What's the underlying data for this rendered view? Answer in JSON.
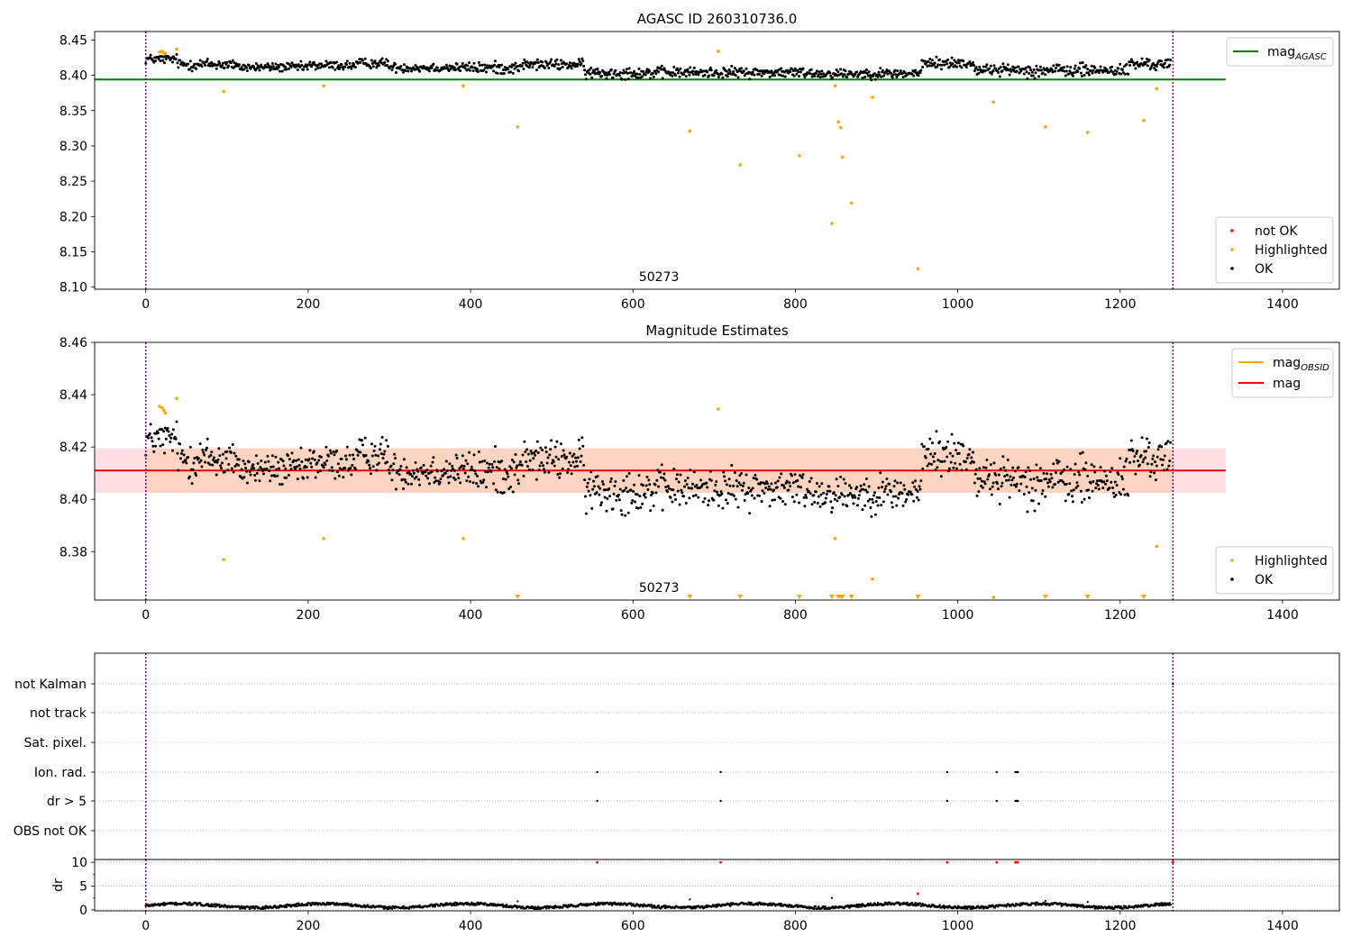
{
  "chart_data": [
    {
      "type": "scatter",
      "title": "AGASC ID 260310736.0",
      "xlabel": "",
      "ylabel": "",
      "xlim": [
        -63,
        1470
      ],
      "ylim": [
        8.097,
        8.462
      ],
      "xticks": [
        0,
        200,
        400,
        600,
        800,
        1000,
        1200,
        1400
      ],
      "yticks": [
        8.1,
        8.15,
        8.2,
        8.25,
        8.3,
        8.35,
        8.4,
        8.45
      ],
      "ytick_labels": [
        "8.10",
        "8.15",
        "8.20",
        "8.25",
        "8.30",
        "8.35",
        "8.40",
        "8.45"
      ],
      "annotation": "50273",
      "annotation_x": 632,
      "vlines": [
        0,
        1265
      ],
      "hline": {
        "name": "mag",
        "name_sub": "AGASC",
        "y": 8.394,
        "x_range": [
          -63,
          1330
        ],
        "color": "#008000"
      },
      "line_legend": {
        "placement": "top-right",
        "entries": [
          {
            "label": "mag",
            "sub": "AGASC",
            "color": "#008000"
          }
        ]
      },
      "point_legend": {
        "placement": "bottom-right",
        "entries": [
          {
            "label": "not OK",
            "color": "#ff0000"
          },
          {
            "label": "Highlighted",
            "color": "#ffa500"
          },
          {
            "label": "OK",
            "color": "#000000"
          }
        ]
      },
      "ok_series": {
        "name": "OK",
        "color": "#000000",
        "x_start": 0,
        "x_end": 1262,
        "count": 1262,
        "segments": [
          {
            "x": [
              0,
              40
            ],
            "lo": 8.413,
            "hi": 8.433
          },
          {
            "x": [
              40,
              110
            ],
            "lo": 8.403,
            "hi": 8.428
          },
          {
            "x": [
              110,
              200
            ],
            "lo": 8.402,
            "hi": 8.421
          },
          {
            "x": [
              200,
              260
            ],
            "lo": 8.404,
            "hi": 8.424
          },
          {
            "x": [
              260,
              300
            ],
            "lo": 8.407,
            "hi": 8.427
          },
          {
            "x": [
              300,
              400
            ],
            "lo": 8.401,
            "hi": 8.421
          },
          {
            "x": [
              400,
              460
            ],
            "lo": 8.398,
            "hi": 8.423
          },
          {
            "x": [
              460,
              540
            ],
            "lo": 8.404,
            "hi": 8.426
          },
          {
            "x": [
              540,
              640
            ],
            "lo": 8.391,
            "hi": 8.416
          },
          {
            "x": [
              640,
              820
            ],
            "lo": 8.393,
            "hi": 8.415
          },
          {
            "x": [
              820,
              955
            ],
            "lo": 8.392,
            "hi": 8.413
          },
          {
            "x": [
              955,
              1020
            ],
            "lo": 8.405,
            "hi": 8.429
          },
          {
            "x": [
              1020,
              1080
            ],
            "lo": 8.397,
            "hi": 8.419
          },
          {
            "x": [
              1080,
              1210
            ],
            "lo": 8.393,
            "hi": 8.421
          },
          {
            "x": [
              1210,
              1262
            ],
            "lo": 8.404,
            "hi": 8.428
          }
        ]
      },
      "highlighted": {
        "name": "Highlighted",
        "color": "#ffa500",
        "x": [
          17,
          20,
          22,
          24,
          38,
          96,
          219,
          391,
          458,
          670,
          705,
          732,
          805,
          845,
          849,
          853,
          856,
          858,
          869,
          895,
          951,
          1044,
          1108,
          1160,
          1229,
          1245
        ],
        "y": [
          8.433,
          8.434,
          8.432,
          8.431,
          8.437,
          8.377,
          8.385,
          8.385,
          8.327,
          8.321,
          8.434,
          8.273,
          8.286,
          8.19,
          8.385,
          8.334,
          8.326,
          8.284,
          8.219,
          8.369,
          8.126,
          8.362,
          8.327,
          8.319,
          8.336,
          8.381
        ]
      }
    },
    {
      "type": "scatter",
      "title": "Magnitude Estimates",
      "xlabel": "",
      "ylabel": "",
      "xlim": [
        -63,
        1470
      ],
      "ylim": [
        8.3615,
        8.46
      ],
      "xticks": [
        0,
        200,
        400,
        600,
        800,
        1000,
        1200,
        1400
      ],
      "yticks": [
        8.38,
        8.4,
        8.42,
        8.44,
        8.46
      ],
      "ytick_labels": [
        "8.38",
        "8.40",
        "8.42",
        "8.44",
        "8.46"
      ],
      "annotation": "50273",
      "annotation_x": 632,
      "vlines": [
        0,
        1265
      ],
      "band": {
        "lo": 8.4025,
        "hi": 8.4195,
        "x_range": [
          -63,
          1330
        ],
        "color_outer": "#ffdfe4",
        "color_inner": "#fdd4c0"
      },
      "mag_line": {
        "name": "mag",
        "y": 8.411,
        "color": "#ff0000"
      },
      "line_legend": {
        "placement": "top-right",
        "entries": [
          {
            "label": "mag",
            "sub": "OBSID",
            "color": "#ffa500"
          },
          {
            "label": "mag",
            "sub": "",
            "color": "#ff0000"
          }
        ]
      },
      "point_legend": {
        "placement": "bottom-right",
        "entries": [
          {
            "label": "Highlighted",
            "color": "#ffa500"
          },
          {
            "label": "OK",
            "color": "#000000"
          }
        ]
      },
      "ok_series": {
        "name": "OK",
        "color": "#000000",
        "x_start": 0,
        "x_end": 1262,
        "count": 1262,
        "segments": [
          {
            "x": [
              0,
              40
            ],
            "lo": 8.413,
            "hi": 8.433
          },
          {
            "x": [
              40,
              110
            ],
            "lo": 8.403,
            "hi": 8.428
          },
          {
            "x": [
              110,
              200
            ],
            "lo": 8.402,
            "hi": 8.421
          },
          {
            "x": [
              200,
              260
            ],
            "lo": 8.404,
            "hi": 8.424
          },
          {
            "x": [
              260,
              300
            ],
            "lo": 8.407,
            "hi": 8.427
          },
          {
            "x": [
              300,
              400
            ],
            "lo": 8.401,
            "hi": 8.421
          },
          {
            "x": [
              400,
              460
            ],
            "lo": 8.398,
            "hi": 8.423
          },
          {
            "x": [
              460,
              540
            ],
            "lo": 8.404,
            "hi": 8.426
          },
          {
            "x": [
              540,
              640
            ],
            "lo": 8.391,
            "hi": 8.416
          },
          {
            "x": [
              640,
              820
            ],
            "lo": 8.393,
            "hi": 8.415
          },
          {
            "x": [
              820,
              955
            ],
            "lo": 8.392,
            "hi": 8.413
          },
          {
            "x": [
              955,
              1020
            ],
            "lo": 8.405,
            "hi": 8.429
          },
          {
            "x": [
              1020,
              1080
            ],
            "lo": 8.397,
            "hi": 8.419
          },
          {
            "x": [
              1080,
              1210
            ],
            "lo": 8.393,
            "hi": 8.421
          },
          {
            "x": [
              1210,
              1262
            ],
            "lo": 8.404,
            "hi": 8.428
          }
        ]
      },
      "highlighted": {
        "name": "Highlighted",
        "color": "#ffa500",
        "x": [
          17,
          20,
          22,
          24,
          38,
          96,
          219,
          391,
          705,
          849,
          895,
          1044,
          1245
        ],
        "y": [
          8.4355,
          8.435,
          8.434,
          8.433,
          8.4385,
          8.377,
          8.385,
          8.385,
          8.4345,
          8.385,
          8.3695,
          8.3625,
          8.382
        ]
      },
      "below_range_markers": {
        "color": "#ffa500",
        "x": [
          458,
          670,
          732,
          805,
          845,
          853,
          856,
          858,
          869,
          951,
          1108,
          1160,
          1229
        ]
      }
    },
    {
      "type": "scatter",
      "title": "",
      "xlabel": "",
      "ylabel": "",
      "xlim": [
        -63,
        1470
      ],
      "xticks": [
        0,
        200,
        400,
        600,
        800,
        1000,
        1200,
        1400
      ],
      "vlines": [
        0,
        1265
      ],
      "flag_rows": [
        "not Kalman",
        "not track",
        "Sat. pixel.",
        "Ion. rad.",
        "dr > 5",
        "OBS not OK"
      ],
      "flags": [
        {
          "row": "Ion. rad.",
          "x": [
            556,
            708,
            987,
            1048,
            1071,
            1073,
            1074
          ]
        },
        {
          "row": "dr > 5",
          "x": [
            556,
            708,
            987,
            1048,
            1071,
            1073,
            1074
          ]
        },
        {
          "row": "not Kalman",
          "x": [
            1265
          ]
        }
      ]
    },
    {
      "type": "scatter",
      "title": "",
      "xlabel": "",
      "ylabel": "dr",
      "xlim": [
        -63,
        1470
      ],
      "ylim": [
        -0.2,
        10.6
      ],
      "xticks": [
        0,
        200,
        400,
        600,
        800,
        1000,
        1200,
        1400
      ],
      "yticks": [
        0,
        5,
        10
      ],
      "vlines": [
        0,
        1265
      ],
      "ok_series": {
        "name": "OK",
        "color": "#000000",
        "count": 1262,
        "lo": 0.2,
        "hi": 1.6
      },
      "scattered_points": {
        "color": "#000000",
        "x": [
          458,
          670,
          845,
          1108,
          1160
        ],
        "y": [
          1.8,
          2.2,
          2.5,
          1.9,
          1.7
        ]
      },
      "red_points": {
        "color": "#ff0000",
        "x": [
          556,
          708,
          951,
          987,
          1048,
          1071,
          1073,
          1074,
          1265
        ],
        "y": [
          10,
          10,
          3.4,
          10,
          10,
          10,
          10,
          10,
          10
        ]
      }
    }
  ]
}
